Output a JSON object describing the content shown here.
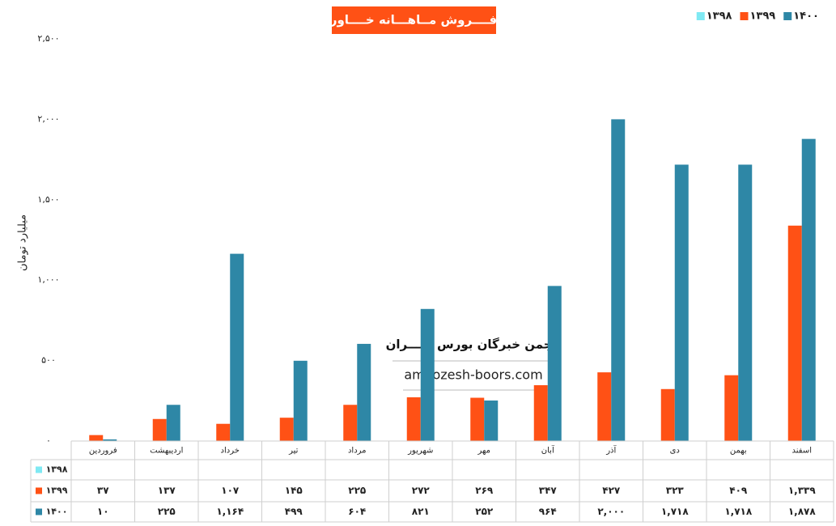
{
  "chart_data": {
    "type": "bar",
    "title": "فــــروش مــاهـــانه خــــاور",
    "y_label": "میلیارد تومان",
    "watermark": {
      "title": "انجمن خبرگان بورس تهـــران",
      "site": "amoozesh-boors.com"
    },
    "categories": [
      "فروردین",
      "اردیبهشت",
      "خرداد",
      "تیر",
      "مرداد",
      "شهریور",
      "مهر",
      "آبان",
      "آذر",
      "دی",
      "بهمن",
      "اسفند"
    ],
    "series": [
      {
        "name": "۱۳۹۸",
        "color": "#7fe9f3",
        "values": [
          null,
          null,
          null,
          null,
          null,
          null,
          null,
          null,
          null,
          null,
          null,
          null
        ]
      },
      {
        "name": "۱۳۹۹",
        "color": "#ff5115",
        "values": [
          37,
          137,
          107,
          145,
          225,
          272,
          269,
          347,
          427,
          323,
          409,
          1339
        ],
        "value_labels": [
          "۳۷",
          "۱۳۷",
          "۱۰۷",
          "۱۴۵",
          "۲۲۵",
          "۲۷۲",
          "۲۶۹",
          "۳۴۷",
          "۴۲۷",
          "۳۲۳",
          "۴۰۹",
          "۱,۳۳۹"
        ]
      },
      {
        "name": "۱۴۰۰",
        "color": "#2e87a6",
        "values": [
          10,
          225,
          1164,
          499,
          604,
          821,
          252,
          964,
          2000,
          1718,
          1718,
          1878
        ],
        "value_labels": [
          "۱۰",
          "۲۲۵",
          "۱,۱۶۴",
          "۴۹۹",
          "۶۰۴",
          "۸۲۱",
          "۲۵۲",
          "۹۶۴",
          "۲,۰۰۰",
          "۱,۷۱۸",
          "۱,۷۱۸",
          "۱,۸۷۸"
        ]
      }
    ],
    "ylim": [
      0,
      2500
    ],
    "yticks": [
      {
        "value": 0,
        "label": "۰"
      },
      {
        "value": 500,
        "label": "۵۰۰"
      },
      {
        "value": 1000,
        "label": "۱,۰۰۰"
      },
      {
        "value": 1500,
        "label": "۱,۵۰۰"
      },
      {
        "value": 2000,
        "label": "۲,۰۰۰"
      },
      {
        "value": 2500,
        "label": "۲,۵۰۰"
      }
    ],
    "grid": false,
    "legend": "top-right"
  }
}
